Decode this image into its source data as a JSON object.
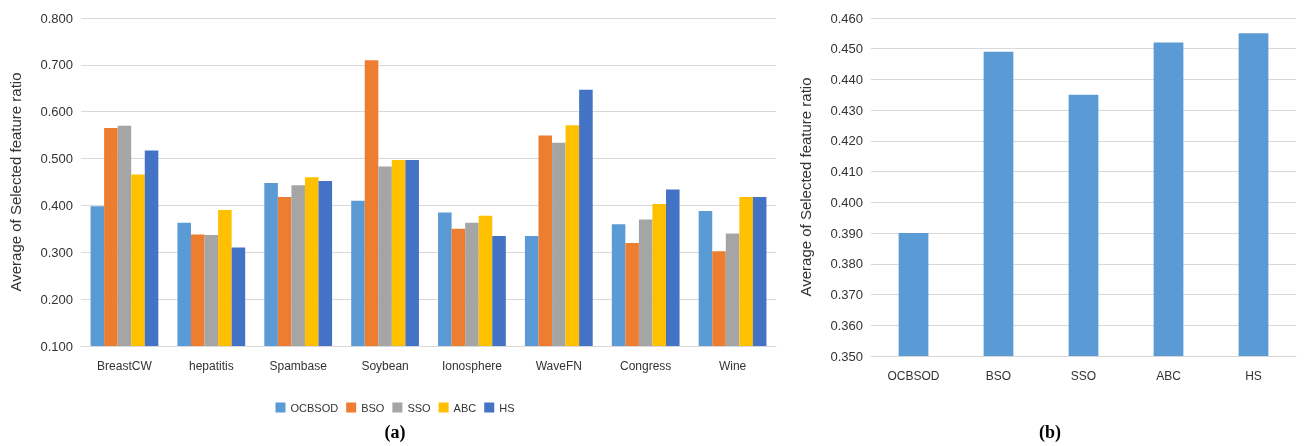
{
  "chart_data": [
    {
      "type": "bar",
      "title": "(a)",
      "ylabel": "Average of Selected feature ratio",
      "categories": [
        "BreastCW",
        "hepatitis",
        "Spambase",
        "Soybean",
        "Ionosphere",
        "WaveFN",
        "Congress",
        "Wine"
      ],
      "series": [
        {
          "name": "OCBSOD",
          "color": "#5b9bd5",
          "values": [
            0.398,
            0.363,
            0.448,
            0.41,
            0.385,
            0.335,
            0.36,
            0.388
          ]
        },
        {
          "name": "BSO",
          "color": "#ed7d31",
          "values": [
            0.565,
            0.338,
            0.418,
            0.71,
            0.35,
            0.549,
            0.32,
            0.302
          ]
        },
        {
          "name": "SSO",
          "color": "#a5a5a5",
          "values": [
            0.57,
            0.337,
            0.443,
            0.483,
            0.363,
            0.534,
            0.37,
            0.34
          ]
        },
        {
          "name": "ABC",
          "color": "#ffc000",
          "values": [
            0.466,
            0.39,
            0.46,
            0.497,
            0.378,
            0.571,
            0.403,
            0.418
          ]
        },
        {
          "name": "HS",
          "color": "#4472c4",
          "values": [
            0.517,
            0.31,
            0.452,
            0.497,
            0.335,
            0.647,
            0.434,
            0.418
          ]
        }
      ],
      "ylim": [
        0.1,
        0.8
      ],
      "yticks": [
        {
          "value": 0.1,
          "label": "0.100"
        },
        {
          "value": 0.2,
          "label": "0.200"
        },
        {
          "value": 0.3,
          "label": "0.300"
        },
        {
          "value": 0.4,
          "label": "0.400"
        },
        {
          "value": 0.5,
          "label": "0.500"
        },
        {
          "value": 0.6,
          "label": "0.600"
        },
        {
          "value": 0.7,
          "label": "0.700"
        },
        {
          "value": 0.8,
          "label": "0.800"
        }
      ],
      "grid": "y",
      "legend": "bottom"
    },
    {
      "type": "bar",
      "title": "(b)",
      "ylabel": "Average of Selected feature ratio",
      "categories": [
        "OCBSOD",
        "BSO",
        "SSO",
        "ABC",
        "HS"
      ],
      "values": [
        0.39,
        0.449,
        0.435,
        0.452,
        0.455
      ],
      "color": "#5b9bd5",
      "ylim": [
        0.35,
        0.46
      ],
      "yticks": [
        {
          "value": 0.35,
          "label": "0.350"
        },
        {
          "value": 0.36,
          "label": "0.360"
        },
        {
          "value": 0.37,
          "label": "0.370"
        },
        {
          "value": 0.38,
          "label": "0.380"
        },
        {
          "value": 0.39,
          "label": "0.390"
        },
        {
          "value": 0.4,
          "label": "0.400"
        },
        {
          "value": 0.41,
          "label": "0.410"
        },
        {
          "value": 0.42,
          "label": "0.420"
        },
        {
          "value": 0.43,
          "label": "0.430"
        },
        {
          "value": 0.44,
          "label": "0.440"
        },
        {
          "value": 0.45,
          "label": "0.450"
        },
        {
          "value": 0.46,
          "label": "0.460"
        }
      ],
      "grid": "y",
      "legend": false
    }
  ]
}
